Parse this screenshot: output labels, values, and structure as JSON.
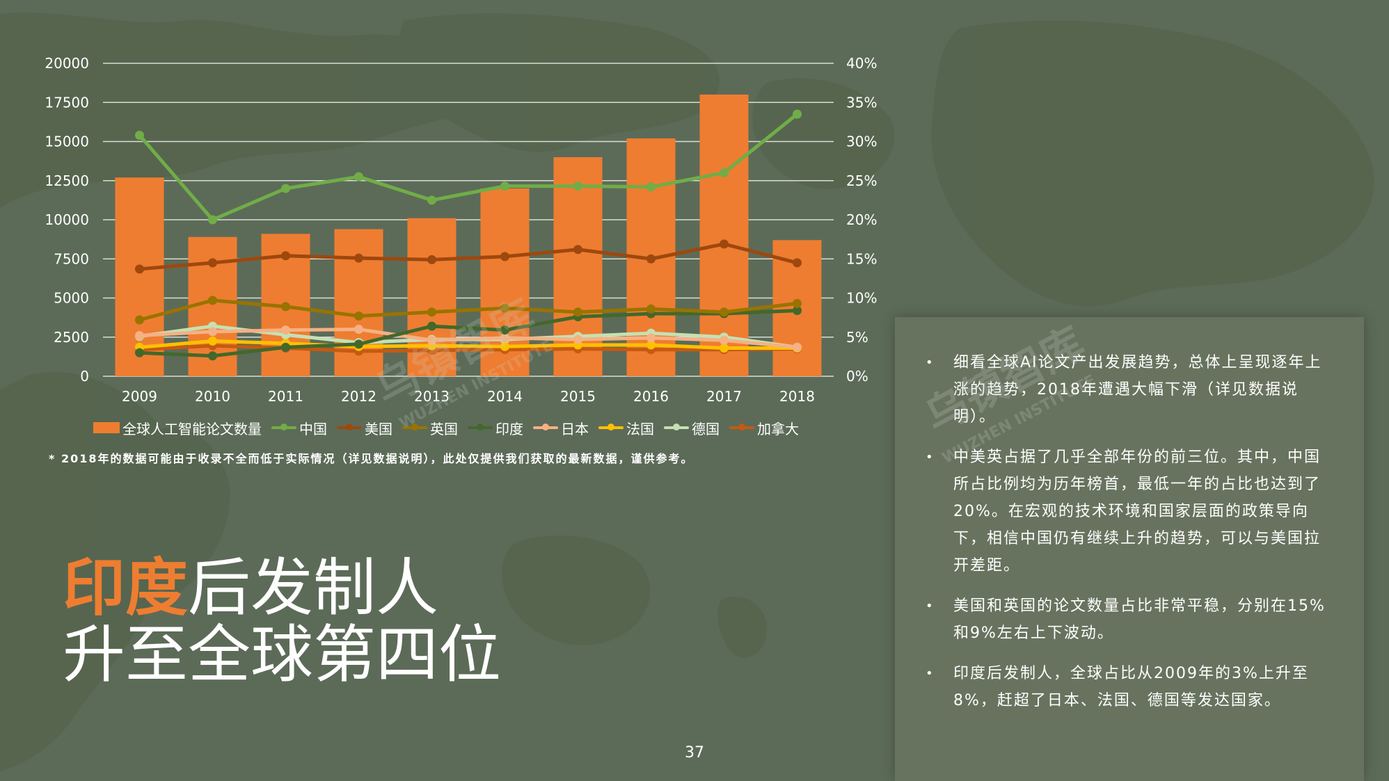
{
  "page": {
    "number": "37",
    "footnote": "* 2018年的数据可能由于收录不全而低于实际情况（详见数据说明），此处仅提供我们获取的最新数据，谨供参考。",
    "headline": {
      "accent": "印度",
      "line1_rest": "后发制人",
      "line2": "升至全球第四位"
    },
    "watermark": {
      "brand": "乌镇智库",
      "sub": "WUZHEN INSTITUTE"
    },
    "bullets": [
      "细看全球AI论文产出发展趋势，总体上呈现逐年上涨的趋势，2018年遭遇大幅下滑（详见数据说明）。",
      "中美英占据了几乎全部年份的前三位。其中，中国所占比例均为历年榜首，最低一年的占比也达到了20%。在宏观的技术环境和国家层面的政策导向下，相信中国仍有继续上升的趋势，可以与美国拉开差距。",
      "美国和英国的论文数量占比非常平稳，分别在15%和9%左右上下波动。",
      "印度后发制人，全球占比从2009年的3%上升至8%，赶超了日本、法国、德国等发达国家。"
    ],
    "colors": {
      "background": "#5c6b58",
      "panel": "#67735f",
      "accent": "#ee7d31"
    }
  },
  "chart_data": {
    "type": "bar",
    "categories": [
      "2009",
      "2010",
      "2011",
      "2012",
      "2013",
      "2014",
      "2015",
      "2016",
      "2017",
      "2018"
    ],
    "left_axis": {
      "min": 0,
      "max": 20000,
      "ticks": [
        "0",
        "2500",
        "5000",
        "7500",
        "10000",
        "12500",
        "15000",
        "17500",
        "20000"
      ]
    },
    "right_axis": {
      "min": 0,
      "max": 40,
      "ticks": [
        "0%",
        "5%",
        "10%",
        "15%",
        "20%",
        "25%",
        "30%",
        "35%",
        "40%"
      ]
    },
    "bar_series": {
      "name": "全球人工智能论文数量",
      "color": "#ee7d31",
      "values": [
        12700,
        8900,
        9100,
        9400,
        10100,
        12000,
        14000,
        15200,
        18000,
        8700
      ]
    },
    "line_series": [
      {
        "name": "中国",
        "color": "#70ad47",
        "values": [
          30.8,
          20.0,
          24.0,
          25.5,
          22.5,
          24.3,
          24.3,
          24.2,
          26.0,
          33.5
        ]
      },
      {
        "name": "美国",
        "color": "#9e480e",
        "values": [
          13.7,
          14.5,
          15.4,
          15.1,
          14.9,
          15.3,
          16.2,
          15.0,
          16.9,
          14.5
        ]
      },
      {
        "name": "英国",
        "color": "#997300",
        "values": [
          7.2,
          9.7,
          8.9,
          7.7,
          8.2,
          8.7,
          8.2,
          8.6,
          8.2,
          9.3
        ]
      },
      {
        "name": "印度",
        "color": "#43682b",
        "values": [
          3.0,
          2.6,
          3.7,
          4.1,
          6.4,
          5.9,
          7.6,
          8.0,
          8.0,
          8.4
        ]
      },
      {
        "name": "日本",
        "color": "#f4b183",
        "values": [
          5.2,
          5.7,
          5.9,
          6.0,
          4.6,
          4.9,
          4.7,
          4.9,
          4.6,
          3.7
        ]
      },
      {
        "name": "法国",
        "color": "#ffc000",
        "values": [
          3.7,
          4.5,
          4.2,
          3.8,
          3.9,
          3.8,
          4.0,
          4.0,
          3.6,
          3.6
        ]
      },
      {
        "name": "德国",
        "color": "#c5e0b4",
        "values": [
          5.1,
          6.4,
          5.3,
          4.3,
          4.7,
          4.7,
          5.1,
          5.5,
          5.0,
          3.7
        ]
      },
      {
        "name": "加拿大",
        "color": "#c55a11",
        "values": [
          3.4,
          3.9,
          3.6,
          3.2,
          3.3,
          3.4,
          3.5,
          3.4,
          3.4,
          3.5
        ]
      }
    ],
    "grid": true,
    "legend_position": "bottom"
  }
}
